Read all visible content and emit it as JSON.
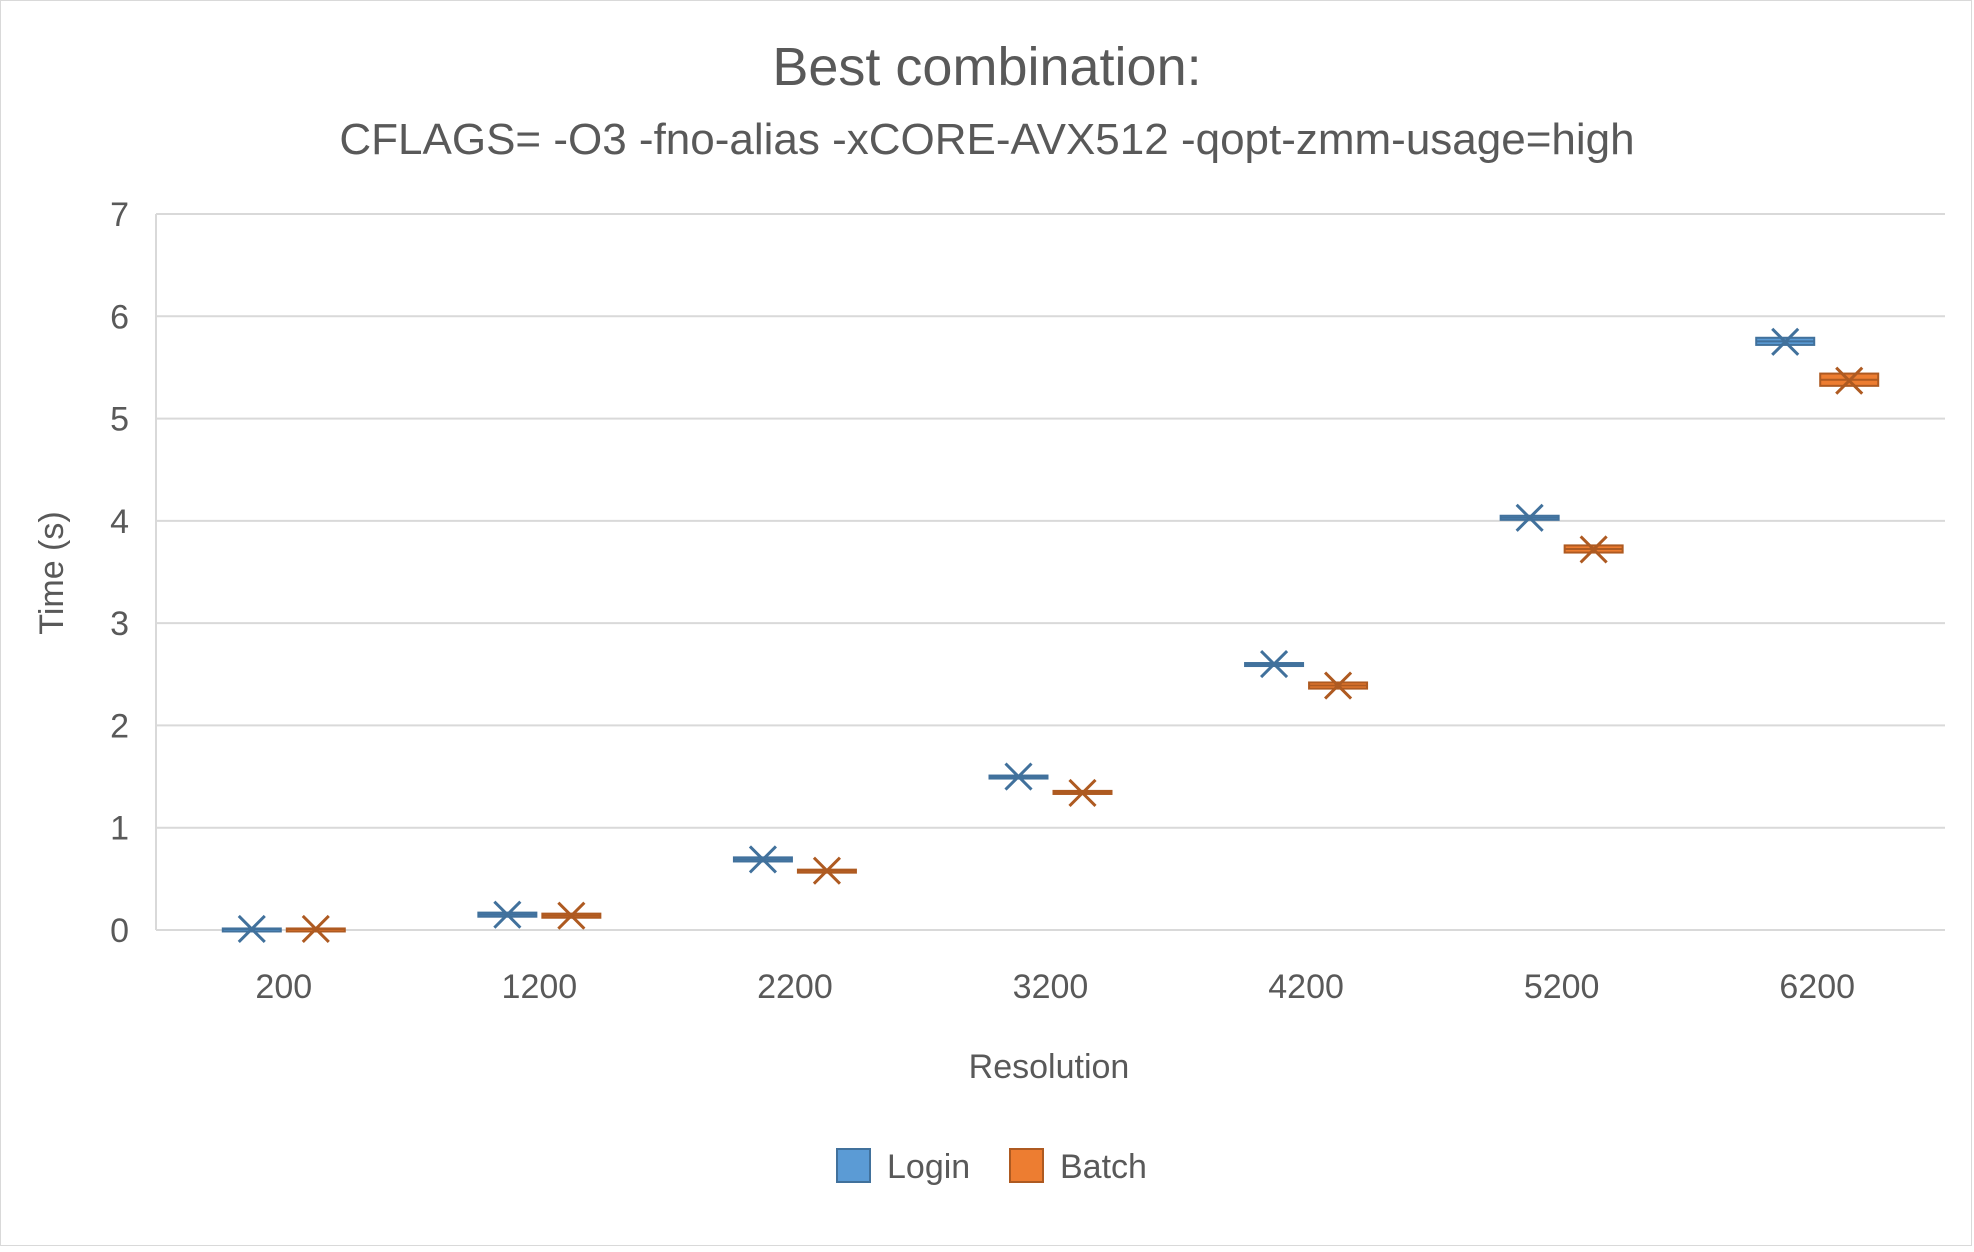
{
  "chart_data": {
    "type": "box",
    "title": "Best combination:",
    "subtitle": "CFLAGS= -O3 -fno-alias -xCORE-AVX512 -qopt-zmm-usage=high",
    "xlabel": "Resolution",
    "ylabel": "Time (s)",
    "ylim": [
      0,
      7
    ],
    "y_ticks": [
      "0",
      "1",
      "2",
      "3",
      "4",
      "5",
      "6",
      "7"
    ],
    "categories": [
      "200",
      "1200",
      "2200",
      "3200",
      "4200",
      "5200",
      "6200"
    ],
    "grid": true,
    "legend_position": "bottom",
    "series": [
      {
        "name": "Login",
        "color": "#5b9bd5",
        "edge": "#41719c",
        "mean": [
          0.01,
          0.15,
          0.69,
          1.5,
          2.6,
          4.03,
          5.75
        ],
        "q1": [
          0.005,
          0.13,
          0.67,
          1.49,
          2.59,
          4.01,
          5.72
        ],
        "q3": [
          0.015,
          0.17,
          0.71,
          1.51,
          2.61,
          4.05,
          5.79
        ]
      },
      {
        "name": "Batch",
        "color": "#ed7d31",
        "edge": "#ae5a21",
        "mean": [
          0.01,
          0.14,
          0.58,
          1.34,
          2.39,
          3.72,
          5.37
        ],
        "q1": [
          0.005,
          0.12,
          0.57,
          1.33,
          2.36,
          3.69,
          5.32
        ],
        "q3": [
          0.015,
          0.16,
          0.59,
          1.36,
          2.42,
          3.76,
          5.44
        ]
      }
    ]
  }
}
